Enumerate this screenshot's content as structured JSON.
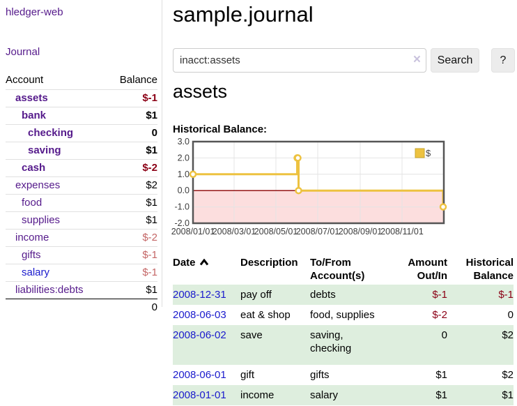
{
  "brand": "hledger-web",
  "nav": {
    "journal": "Journal"
  },
  "sidebar": {
    "account_header": "Account",
    "balance_header": "Balance",
    "rows": [
      {
        "name": "assets",
        "balance": "$-1",
        "level": 1,
        "bold": true,
        "name_tone": "purple",
        "balance_tone": "dark-red"
      },
      {
        "name": "bank",
        "balance": "$1",
        "level": 2,
        "bold": true,
        "name_tone": "purple",
        "balance_tone": "black"
      },
      {
        "name": "checking",
        "balance": "0",
        "level": 3,
        "bold": true,
        "name_tone": "purple",
        "balance_tone": "black"
      },
      {
        "name": "saving",
        "balance": "$1",
        "level": 3,
        "bold": true,
        "name_tone": "purple",
        "balance_tone": "black"
      },
      {
        "name": "cash",
        "balance": "$-2",
        "level": 2,
        "bold": true,
        "name_tone": "purple",
        "balance_tone": "dark-red"
      },
      {
        "name": "expenses",
        "balance": "$2",
        "level": 1,
        "bold": false,
        "name_tone": "purple",
        "balance_tone": "black"
      },
      {
        "name": "food",
        "balance": "$1",
        "level": 2,
        "bold": false,
        "name_tone": "purple",
        "balance_tone": "black"
      },
      {
        "name": "supplies",
        "balance": "$1",
        "level": 2,
        "bold": false,
        "name_tone": "purple",
        "balance_tone": "black"
      },
      {
        "name": "income",
        "balance": "$-2",
        "level": 1,
        "bold": false,
        "name_tone": "purple",
        "balance_tone": "faint-red"
      },
      {
        "name": "gifts",
        "balance": "$-1",
        "level": 2,
        "bold": false,
        "name_tone": "purple",
        "balance_tone": "faint-red"
      },
      {
        "name": "salary",
        "balance": "$-1",
        "level": 2,
        "bold": false,
        "name_tone": "blue",
        "balance_tone": "faint-red"
      },
      {
        "name": "liabilities:debts",
        "balance": "$1",
        "level": 1,
        "bold": false,
        "name_tone": "purple",
        "balance_tone": "black"
      }
    ],
    "total": "0"
  },
  "main": {
    "title": "sample.journal",
    "search": {
      "value": "inacct:assets",
      "clear": "×",
      "button": "Search",
      "help": "?"
    },
    "heading": "assets",
    "chart_title": "Historical Balance:"
  },
  "chart_data": {
    "type": "line",
    "title": "Historical Balance:",
    "series": [
      {
        "name": "$",
        "color": "#edc240",
        "points": [
          [
            "2008-01-01",
            1
          ],
          [
            "2008-06-01",
            2
          ],
          [
            "2008-06-02",
            2
          ],
          [
            "2008-06-03",
            0
          ],
          [
            "2008-12-31",
            -1
          ]
        ]
      }
    ],
    "step": true,
    "ylim": [
      -2,
      3
    ],
    "xlim": [
      "2008-01-01",
      "2009-01-01"
    ],
    "yticks": [
      3,
      2,
      1,
      0,
      -1,
      -2
    ],
    "xticks": [
      "2008/01/01",
      "2008/03/01",
      "2008/05/01",
      "2008/07/01",
      "2008/09/01",
      "2008/11/01"
    ],
    "legend": {
      "label": "$",
      "position": "top-right"
    },
    "colors": {
      "negative_fill": "#fcdede",
      "zero_line": "#8b0000",
      "border": "#555555",
      "grid": "#e4e4e4",
      "tick_text": "#3c3c3c"
    },
    "grid": true
  },
  "register": {
    "headers": {
      "date": "Date",
      "description": "Description",
      "accounts": "To/From\nAccount(s)",
      "amount": "Amount\nOut/In",
      "balance": "Historical\nBalance"
    },
    "rows": [
      {
        "date": "2008-12-31",
        "description": "pay off",
        "accounts": "debts",
        "amount": "$-1",
        "balance": "$-1"
      },
      {
        "date": "2008-06-03",
        "description": "eat & shop",
        "accounts": "food, supplies",
        "amount": "$-2",
        "balance": "0"
      },
      {
        "date": "2008-06-02",
        "description": "save",
        "accounts": "saving,\nchecking",
        "amount": "0",
        "balance": "$2"
      },
      {
        "date": "2008-06-01",
        "description": "gift",
        "accounts": "gifts",
        "amount": "$1",
        "balance": "$2"
      },
      {
        "date": "2008-01-01",
        "description": "income",
        "accounts": "salary",
        "amount": "$1",
        "balance": "$1"
      }
    ]
  }
}
